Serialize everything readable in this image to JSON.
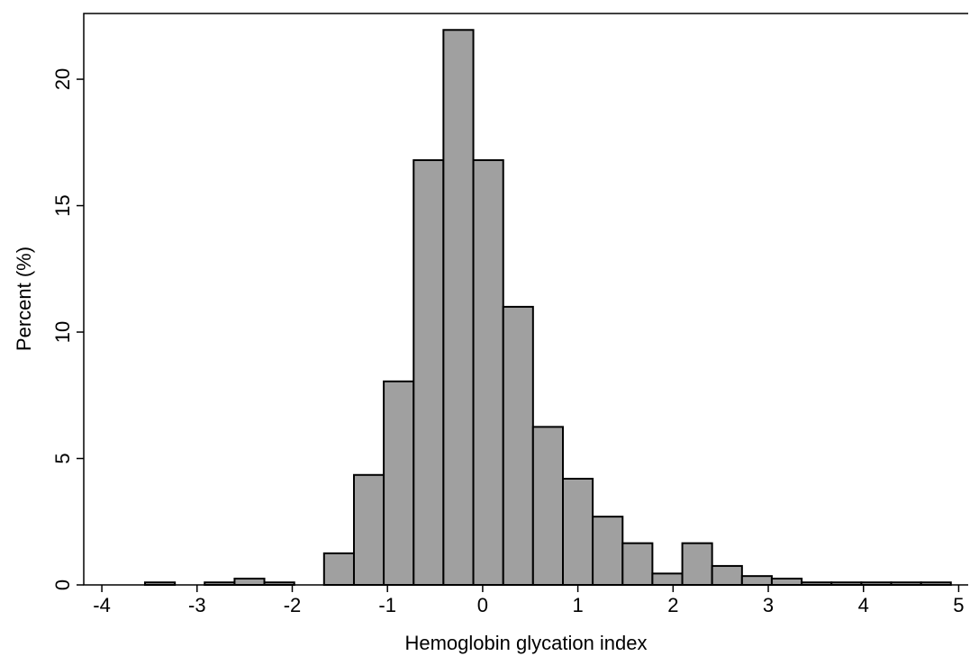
{
  "chart_data": {
    "type": "histogram",
    "x_label": "Hemoglobin glycation index",
    "y_label": "Percent (%)",
    "bins": [
      -3.86,
      -3.547,
      -3.233,
      -2.92,
      -2.606,
      -2.293,
      -1.979,
      -1.666,
      -1.352,
      -1.039,
      -0.725,
      -0.412,
      -0.098,
      0.216,
      0.529,
      0.843,
      1.156,
      1.47,
      1.783,
      2.097,
      2.41,
      2.724,
      3.037,
      3.351,
      3.664,
      3.978,
      4.291,
      4.605,
      4.918
    ],
    "values": [
      0,
      0.1,
      0,
      0.1,
      0.25,
      0.1,
      0,
      1.25,
      4.35,
      8.05,
      16.8,
      21.95,
      16.8,
      11.0,
      6.25,
      4.2,
      2.7,
      1.65,
      0.45,
      1.65,
      0.75,
      0.35,
      0.25,
      0.1,
      0.1,
      0.1,
      0.1,
      0.1
    ],
    "color": "#a0a0a0",
    "xlim": [
      -4.19,
      5.1
    ],
    "ylim": [
      0,
      22.6
    ],
    "xticks": [
      -4,
      -3,
      -2,
      -1,
      0,
      1,
      2,
      3,
      4,
      5
    ],
    "yticks": [
      0,
      5,
      10,
      15,
      20
    ]
  }
}
